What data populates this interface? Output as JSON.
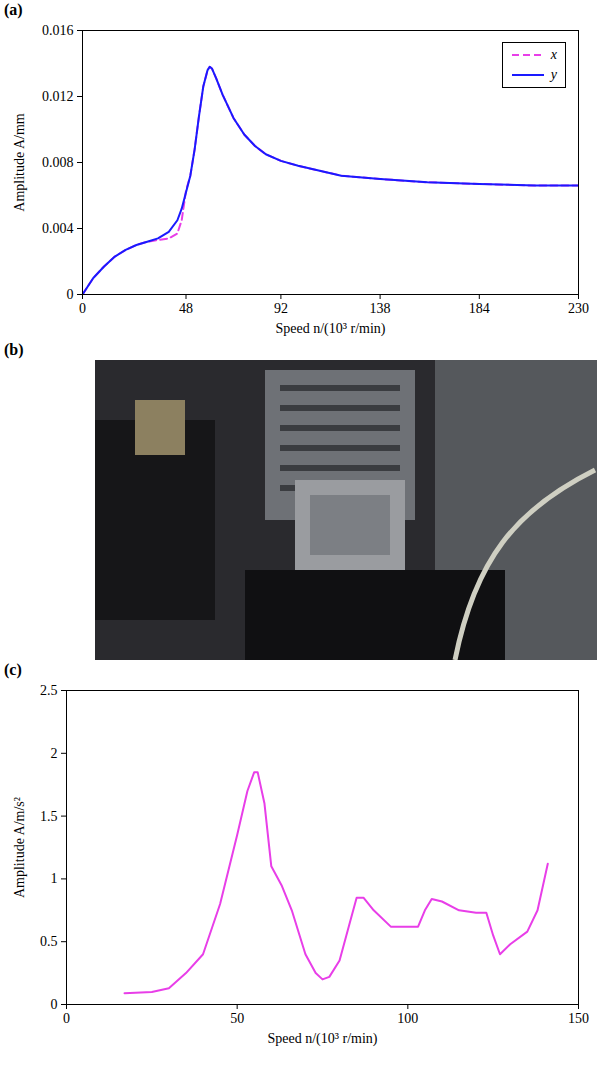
{
  "chart_data": [
    {
      "type": "line",
      "panel_label": "(a)",
      "x_label": "Speed n/(10³ r/min)",
      "y_label": "Amplitude A/mm",
      "xlim": [
        0,
        230
      ],
      "xticks": [
        0,
        48,
        92,
        138,
        184,
        230
      ],
      "ylim": [
        0,
        0.016
      ],
      "yticks": [
        0,
        0.004,
        0.008,
        0.012,
        0.016
      ],
      "grid": false,
      "legend": "top-right",
      "x": [
        0,
        5,
        10,
        15,
        20,
        25,
        30,
        35,
        40,
        44,
        46,
        48,
        50,
        52,
        54,
        56,
        58,
        59,
        60,
        62,
        65,
        70,
        75,
        80,
        85,
        92,
        100,
        110,
        120,
        138,
        160,
        184,
        210,
        230
      ],
      "series": [
        {
          "name": "x",
          "color": "#e83ee8",
          "line_style": "dashed",
          "values": [
            0,
            0.001,
            0.0017,
            0.0023,
            0.0027,
            0.003,
            0.0032,
            0.0033,
            0.0034,
            0.0037,
            0.0045,
            0.0063,
            0.0072,
            0.0088,
            0.0108,
            0.0126,
            0.0136,
            0.0138,
            0.0137,
            0.0131,
            0.0121,
            0.0107,
            0.0097,
            0.009,
            0.0085,
            0.0081,
            0.0078,
            0.0075,
            0.0072,
            0.007,
            0.0068,
            0.0067,
            0.0066,
            0.0066
          ]
        },
        {
          "name": "y",
          "color": "#1a1aff",
          "line_style": "solid",
          "values": [
            0,
            0.001,
            0.0017,
            0.0023,
            0.0027,
            0.003,
            0.0032,
            0.0034,
            0.0038,
            0.0045,
            0.0052,
            0.0062,
            0.0072,
            0.0088,
            0.0108,
            0.0126,
            0.0136,
            0.0138,
            0.0137,
            0.0131,
            0.0121,
            0.0107,
            0.0097,
            0.009,
            0.0085,
            0.0081,
            0.0078,
            0.0075,
            0.0072,
            0.007,
            0.0068,
            0.0067,
            0.0066,
            0.0066
          ]
        }
      ]
    },
    {
      "type": "line",
      "panel_label": "(c)",
      "x_label": "Speed n/(10³ r/min)",
      "y_label": "Amplitude A/m/s²",
      "xlim": [
        0,
        150
      ],
      "xticks": [
        0,
        50,
        100,
        150
      ],
      "ylim": [
        0,
        2.5
      ],
      "yticks": [
        0,
        0.5,
        1,
        1.5,
        2,
        2.5
      ],
      "grid": false,
      "x": [
        17,
        25,
        30,
        35,
        40,
        45,
        50,
        53,
        55,
        56,
        58,
        60,
        63,
        66,
        70,
        73,
        75,
        77,
        80,
        83,
        85,
        87,
        90,
        95,
        100,
        103,
        105,
        107,
        110,
        115,
        120,
        123,
        125,
        127,
        130,
        135,
        138,
        141
      ],
      "series": [
        {
          "color": "#e83ee8",
          "line_style": "solid",
          "values": [
            0.09,
            0.1,
            0.13,
            0.25,
            0.4,
            0.8,
            1.35,
            1.7,
            1.85,
            1.85,
            1.6,
            1.1,
            0.95,
            0.75,
            0.4,
            0.25,
            0.2,
            0.22,
            0.35,
            0.65,
            0.85,
            0.85,
            0.75,
            0.62,
            0.62,
            0.62,
            0.75,
            0.84,
            0.82,
            0.75,
            0.73,
            0.73,
            0.55,
            0.4,
            0.48,
            0.58,
            0.75,
            1.12
          ]
        }
      ]
    }
  ],
  "image_panel": {
    "panel_label": "(b)"
  }
}
